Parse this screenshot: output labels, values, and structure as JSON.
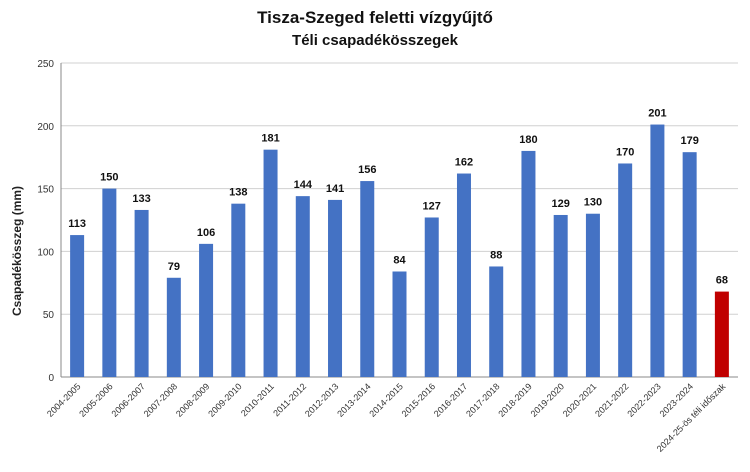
{
  "chart_data": {
    "type": "bar",
    "title": "Tisza-Szeged feletti vízgyűjtő",
    "subtitle": "Téli csapadékösszegek",
    "xlabel": "",
    "ylabel": "Csapadékösszeg (mm)",
    "ylim": [
      0,
      250
    ],
    "yticks": [
      0,
      50,
      100,
      150,
      200,
      250
    ],
    "grid": true,
    "categories": [
      "2004-2005",
      "2005-2006",
      "2006-2007",
      "2007-2008",
      "2008-2009",
      "2009-2010",
      "2010-2011",
      "2011-2012",
      "2012-2013",
      "2013-2014",
      "2014-2015",
      "2015-2016",
      "2016-2017",
      "2017-2018",
      "2018-2019",
      "2019-2020",
      "2020-2021",
      "2021-2022",
      "2022-2023",
      "2023-2024",
      "2024-25-ös téli időszak"
    ],
    "values": [
      113,
      150,
      133,
      79,
      106,
      138,
      181,
      144,
      141,
      156,
      84,
      127,
      162,
      88,
      180,
      129,
      130,
      170,
      201,
      179,
      68
    ],
    "colors": {
      "bar": "#4472C4",
      "highlight": "#C00000",
      "highlight_index": 20
    }
  }
}
